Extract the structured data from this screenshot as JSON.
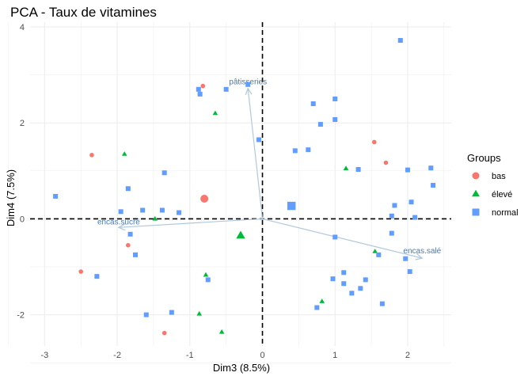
{
  "chart_data": {
    "type": "scatter",
    "title": "PCA - Taux de vitamines",
    "xlabel": "Dim3 (8.5%)",
    "ylabel": "Dim4 (7.5%)",
    "xlim": [
      -3.2,
      2.6
    ],
    "ylim": [
      -2.65,
      4.1
    ],
    "x_ticks": [
      -3,
      -2,
      -1,
      0,
      1,
      2
    ],
    "y_ticks": [
      -2,
      0,
      2,
      4
    ],
    "grid": true,
    "legend_position": "right",
    "legend": {
      "title": "Groups",
      "entries": [
        {
          "label": "bas",
          "shape": "circle",
          "color": "#F8766D"
        },
        {
          "label": "élevé",
          "shape": "triangle",
          "color": "#00BA38"
        },
        {
          "label": "normal",
          "shape": "square",
          "color": "#619CFF"
        }
      ]
    },
    "series": [
      {
        "name": "bas",
        "shape": "circle",
        "color": "#F8766D",
        "points": [
          {
            "x": -2.35,
            "y": 1.33
          },
          {
            "x": -0.82,
            "y": 2.77
          },
          {
            "x": 1.54,
            "y": 1.6
          },
          {
            "x": 1.7,
            "y": 1.17
          },
          {
            "x": -1.85,
            "y": -0.55
          },
          {
            "x": -2.5,
            "y": -1.1
          },
          {
            "x": -1.35,
            "y": -2.38
          }
        ],
        "centroid": {
          "x": -0.8,
          "y": 0.42
        }
      },
      {
        "name": "élevé",
        "shape": "triangle",
        "color": "#00BA38",
        "points": [
          {
            "x": -1.9,
            "y": 1.35
          },
          {
            "x": -0.65,
            "y": 2.2
          },
          {
            "x": 1.15,
            "y": 1.05
          },
          {
            "x": -1.48,
            "y": 0.0
          },
          {
            "x": -0.78,
            "y": -1.17
          },
          {
            "x": 1.55,
            "y": -0.68
          },
          {
            "x": 0.82,
            "y": -1.72
          },
          {
            "x": -0.87,
            "y": -1.98
          },
          {
            "x": -0.56,
            "y": -2.36
          }
        ],
        "centroid": {
          "x": -0.3,
          "y": -0.35
        }
      },
      {
        "name": "normal",
        "shape": "square",
        "color": "#619CFF",
        "points": [
          {
            "x": -2.85,
            "y": 0.47
          },
          {
            "x": -1.85,
            "y": 0.63
          },
          {
            "x": -1.35,
            "y": 0.96
          },
          {
            "x": -1.95,
            "y": 0.15
          },
          {
            "x": -1.65,
            "y": 0.18
          },
          {
            "x": -1.15,
            "y": 0.13
          },
          {
            "x": -1.38,
            "y": 0.18
          },
          {
            "x": -1.82,
            "y": -0.32
          },
          {
            "x": -1.75,
            "y": -0.75
          },
          {
            "x": -2.28,
            "y": -1.2
          },
          {
            "x": -1.6,
            "y": -2.0
          },
          {
            "x": -1.25,
            "y": -1.95
          },
          {
            "x": -0.75,
            "y": -1.27
          },
          {
            "x": -0.88,
            "y": 2.7
          },
          {
            "x": -0.86,
            "y": 2.6
          },
          {
            "x": -0.5,
            "y": 2.7
          },
          {
            "x": -0.2,
            "y": 2.8
          },
          {
            "x": -0.05,
            "y": 1.65
          },
          {
            "x": 0.45,
            "y": 1.42
          },
          {
            "x": 0.63,
            "y": 1.44
          },
          {
            "x": 0.8,
            "y": 1.97
          },
          {
            "x": 0.7,
            "y": 2.4
          },
          {
            "x": 1.0,
            "y": 2.5
          },
          {
            "x": 1.0,
            "y": 2.07
          },
          {
            "x": 1.9,
            "y": 3.72
          },
          {
            "x": 1.32,
            "y": 1.03
          },
          {
            "x": 2.0,
            "y": 1.02
          },
          {
            "x": 2.32,
            "y": 1.06
          },
          {
            "x": 2.05,
            "y": 0.35
          },
          {
            "x": 2.35,
            "y": 0.7
          },
          {
            "x": 1.82,
            "y": 0.28
          },
          {
            "x": 1.78,
            "y": 0.06
          },
          {
            "x": 2.1,
            "y": 0.03
          },
          {
            "x": 1.78,
            "y": -0.3
          },
          {
            "x": 1.0,
            "y": -0.38
          },
          {
            "x": 1.6,
            "y": -0.75
          },
          {
            "x": 1.97,
            "y": -0.83
          },
          {
            "x": 1.12,
            "y": -1.12
          },
          {
            "x": 1.42,
            "y": -1.27
          },
          {
            "x": 0.97,
            "y": -1.25
          },
          {
            "x": 2.03,
            "y": -1.1
          },
          {
            "x": 1.12,
            "y": -1.35
          },
          {
            "x": 1.35,
            "y": -1.45
          },
          {
            "x": 1.23,
            "y": -1.55
          },
          {
            "x": 1.65,
            "y": -1.77
          },
          {
            "x": 0.75,
            "y": -1.85
          }
        ],
        "centroid": {
          "x": 0.4,
          "y": 0.27
        }
      }
    ],
    "variables": [
      {
        "label": "pâtisseries",
        "x": -0.2,
        "y": 2.72
      },
      {
        "label": "encas.sucré",
        "x": -1.98,
        "y": -0.18
      },
      {
        "label": "encas.salé",
        "x": 2.2,
        "y": -0.82
      }
    ],
    "variable_color": "#B0C8DC",
    "variable_label_color": "#4A7AAE"
  }
}
